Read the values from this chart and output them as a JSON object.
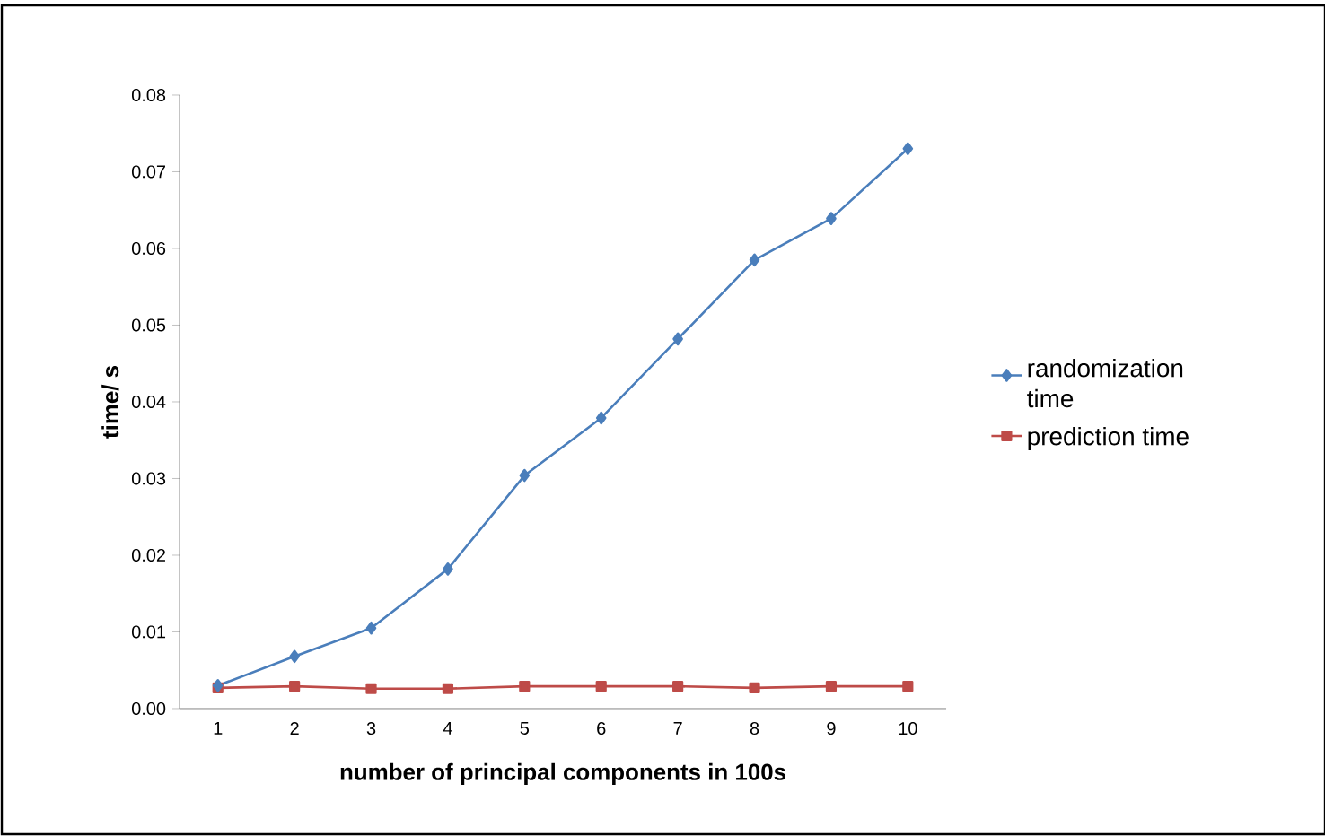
{
  "chart_data": {
    "type": "line",
    "xlabel": "number of principal components in 100s",
    "ylabel": "time/ s",
    "categories": [
      "1",
      "2",
      "3",
      "4",
      "5",
      "6",
      "7",
      "8",
      "9",
      "10"
    ],
    "series": [
      {
        "name": "randomization time",
        "color": "#4a7ebb",
        "marker": "diamond",
        "values": [
          0.003,
          0.0068,
          0.0105,
          0.0182,
          0.0304,
          0.0379,
          0.0482,
          0.0585,
          0.0639,
          0.073
        ]
      },
      {
        "name": "prediction time",
        "color": "#be4b48",
        "marker": "square",
        "values": [
          0.0027,
          0.0029,
          0.0026,
          0.0026,
          0.0029,
          0.0029,
          0.0029,
          0.0027,
          0.0029,
          0.0029
        ]
      }
    ],
    "ylim": [
      0,
      0.08
    ],
    "yticks": [
      {
        "value": 0,
        "label": "0.00"
      },
      {
        "value": 0.01,
        "label": "0.01"
      },
      {
        "value": 0.02,
        "label": "0.02"
      },
      {
        "value": 0.03,
        "label": "0.03"
      },
      {
        "value": 0.04,
        "label": "0.04"
      },
      {
        "value": 0.05,
        "label": "0.05"
      },
      {
        "value": 0.06,
        "label": "0.06"
      },
      {
        "value": 0.07,
        "label": "0.07"
      },
      {
        "value": 0.08,
        "label": "0.08"
      }
    ],
    "grid": false,
    "legend": "right"
  }
}
